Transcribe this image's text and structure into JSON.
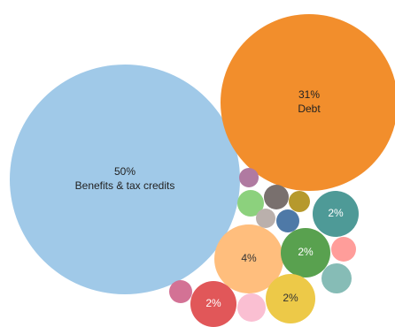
{
  "chart_data": {
    "type": "bubble",
    "title": "",
    "series": [
      {
        "label": "Benefits & tax credits",
        "value": 50,
        "value_text": "50%",
        "color": "#a0c9e8",
        "text_color": "#222222"
      },
      {
        "label": "Debt",
        "value": 31,
        "value_text": "31%",
        "color": "#f28e2c",
        "text_color": "#222222"
      },
      {
        "label": "",
        "value": 4,
        "value_text": "4%",
        "color": "#ffbe7d",
        "text_color": "#333333"
      },
      {
        "label": "",
        "value": 2,
        "value_text": "2%",
        "color": "#4e9a97",
        "text_color": "#ffffff"
      },
      {
        "label": "",
        "value": 2,
        "value_text": "2%",
        "color": "#59a14f",
        "text_color": "#ffffff"
      },
      {
        "label": "",
        "value": 2,
        "value_text": "2%",
        "color": "#edc948",
        "text_color": "#333333"
      },
      {
        "label": "",
        "value": 2,
        "value_text": "2%",
        "color": "#e15759",
        "text_color": "#ffffff"
      },
      {
        "label": "",
        "value": 1,
        "value_text": "",
        "color": "#b07aa1",
        "text_color": "#ffffff"
      },
      {
        "label": "",
        "value": 1,
        "value_text": "",
        "color": "#8cd17d",
        "text_color": "#ffffff"
      },
      {
        "label": "",
        "value": 1,
        "value_text": "",
        "color": "#79706e",
        "text_color": "#ffffff"
      },
      {
        "label": "",
        "value": 1,
        "value_text": "",
        "color": "#b6992d",
        "text_color": "#ffffff"
      },
      {
        "label": "",
        "value": 1,
        "value_text": "",
        "color": "#bab0ac",
        "text_color": "#ffffff"
      },
      {
        "label": "",
        "value": 1,
        "value_text": "",
        "color": "#4e79a7",
        "text_color": "#ffffff"
      },
      {
        "label": "",
        "value": 1,
        "value_text": "",
        "color": "#ff9d9a",
        "text_color": "#ffffff"
      },
      {
        "label": "",
        "value": 1,
        "value_text": "",
        "color": "#86bcb6",
        "text_color": "#ffffff"
      },
      {
        "label": "",
        "value": 1,
        "value_text": "",
        "color": "#d37295",
        "text_color": "#ffffff"
      },
      {
        "label": "",
        "value": 1,
        "value_text": "",
        "color": "#fabfd2",
        "text_color": "#ffffff"
      }
    ]
  }
}
